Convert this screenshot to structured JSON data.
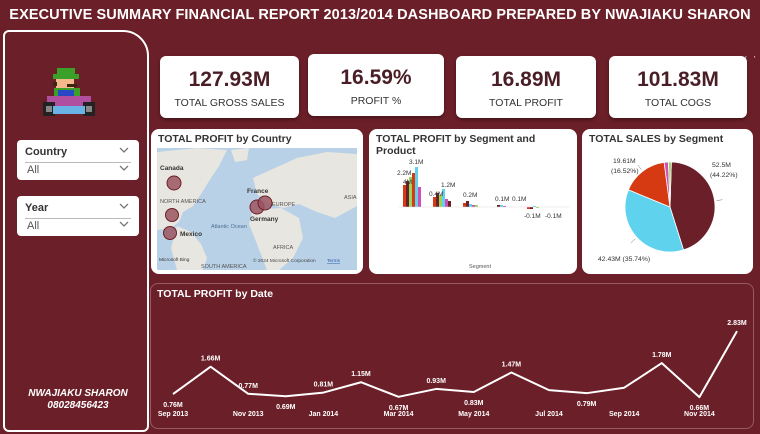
{
  "header": {
    "title": "EXECUTIVE SUMMARY FINANCIAL REPORT 2013/2014 DASHBOARD PREPARED BY NWAJIAKU SHARON"
  },
  "sidebar": {
    "slicers": [
      {
        "label": "Country",
        "value": "All"
      },
      {
        "label": "Year",
        "value": "All"
      }
    ],
    "author_name": "NWAJIAKU SHARON",
    "author_phone": "08028456423"
  },
  "kpis": [
    {
      "value": "127.93M",
      "label": "TOTAL GROSS SALES"
    },
    {
      "value": "16.59%",
      "label": "PROFIT %"
    },
    {
      "value": "16.89M",
      "label": "TOTAL PROFIT"
    },
    {
      "value": "101.83M",
      "label": "TOTAL COGS"
    }
  ],
  "more_options": "· ·",
  "map": {
    "title": "TOTAL PROFIT by Country",
    "labels": {
      "canada": "Canada",
      "north_america": "NORTH AMERICA",
      "france": "France",
      "europe": "EUROPE",
      "germany": "Germany",
      "asia": "ASIA",
      "mexico": "Mexico",
      "atlantic": "Atlantic Ocean",
      "africa": "AFRICA",
      "south_america": "SOUTH AMERICA"
    },
    "credit": "© 2024 Microsoft Corporation",
    "terms": "Terms",
    "brand": "Microsoft Bing",
    "colors": {
      "water": "#b9d1e6",
      "land": "#e8e6e1",
      "bubble": "#9b5560"
    }
  },
  "segment_chart": {
    "title": "TOTAL PROFIT by Segment and Product",
    "xlabel": "Segment",
    "data_labels": [
      "2.2M",
      "3.1M",
      "4M",
      "1.2M",
      "0.4M",
      "0.2M",
      "0.1M",
      "0.1M",
      "-0.1M",
      "-0.1M"
    ]
  },
  "chart_data": [
    {
      "type": "pie",
      "title": "TOTAL SALES by Segment",
      "slices": [
        {
          "value": 52.5,
          "label": "52.5M (44.22%)",
          "percent": 44.22,
          "color": "#6b1f28"
        },
        {
          "value": 42.43,
          "label": "42.43M (35.74%)",
          "percent": 35.74,
          "color": "#5fd3ee"
        },
        {
          "value": 19.61,
          "label": "19.61M (16.52%)",
          "percent": 16.52,
          "color": "#d63a12"
        },
        {
          "value": 1.8,
          "label": "",
          "percent": 1.52,
          "color": "#d24fb7"
        },
        {
          "value": 1.2,
          "label": "",
          "percent": 1.0,
          "color": "#9cd45a"
        }
      ]
    },
    {
      "type": "line",
      "title": "TOTAL PROFIT by Date",
      "x": [
        "Sep 2013",
        "Oct 2013",
        "Nov 2013",
        "Dec 2013",
        "Jan 2014",
        "Feb 2014",
        "Mar 2014",
        "Apr 2014",
        "May 2014",
        "Jun 2014",
        "Jul 2014",
        "Aug 2014",
        "Sep 2014",
        "Oct 2014",
        "Nov 2014",
        "Dec 2014"
      ],
      "values": [
        0.76,
        1.66,
        0.77,
        0.69,
        0.81,
        1.15,
        0.67,
        0.93,
        0.83,
        1.47,
        0.89,
        0.79,
        0.97,
        1.78,
        0.66,
        2.83
      ],
      "data_labels": [
        "0.76M",
        "1.66M",
        "0.77M",
        "0.69M",
        "0.81M",
        "1.15M",
        "0.67M",
        "0.93M",
        "0.83M",
        "1.47M",
        "",
        "0.79M",
        "",
        "1.78M",
        "0.66M",
        "2.83M"
      ],
      "tick_labels": [
        "Sep 2013",
        "Nov 2013",
        "Jan 2014",
        "Mar 2014",
        "May 2014",
        "Jul 2014",
        "Sep 2014",
        "Nov 2014"
      ],
      "ylim": [
        0.5,
        3.0
      ],
      "color": "#ffffff"
    }
  ]
}
